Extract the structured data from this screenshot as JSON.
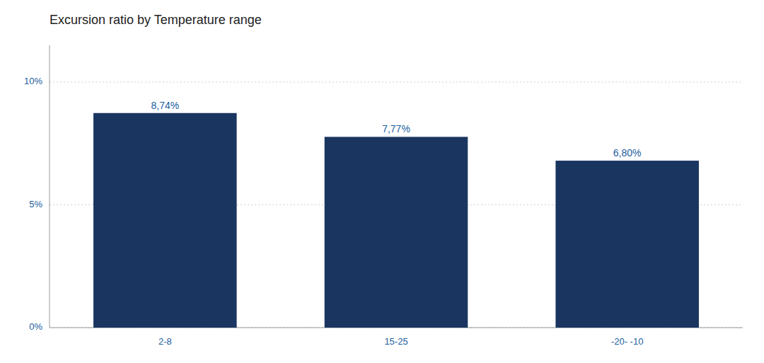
{
  "chart_data": {
    "type": "bar",
    "title": "Excursion ratio by Temperature range",
    "categories": [
      "2-8",
      "15-25",
      "-20- -10"
    ],
    "values": [
      0.0874,
      0.0777,
      0.068
    ],
    "value_labels": [
      "8,74%",
      "7,77%",
      "6,80%"
    ],
    "color": "#1a3560",
    "ylim": [
      0,
      0.115
    ],
    "yticks": [
      {
        "value": 0,
        "label": "0%"
      },
      {
        "value": 0.05,
        "label": "5%"
      },
      {
        "value": 0.1,
        "label": "10%"
      }
    ],
    "grid": true,
    "data_labels": true
  }
}
